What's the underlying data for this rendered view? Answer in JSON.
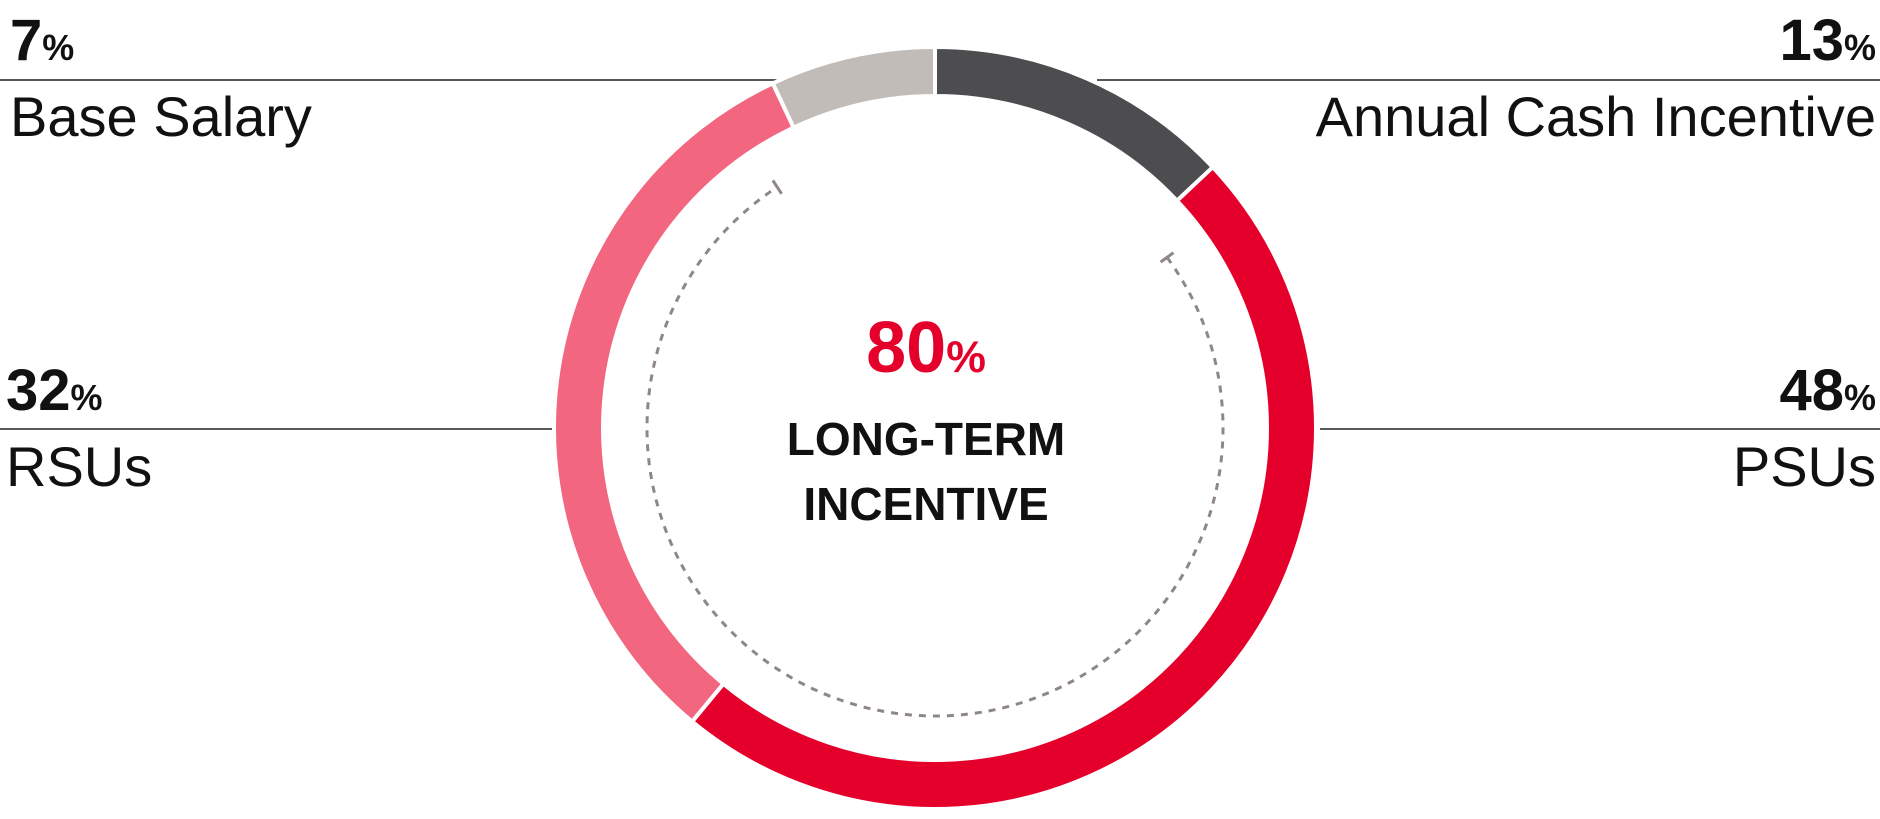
{
  "chart_data": {
    "type": "pie",
    "donut": true,
    "categories": [
      "Annual Cash Incentive",
      "PSUs",
      "RSUs",
      "Base Salary"
    ],
    "values": [
      13,
      48,
      32,
      7
    ],
    "value_labels": [
      "13%",
      "48%",
      "32%",
      "7%"
    ],
    "colors": [
      "#4d4d4f",
      "#e4002b",
      "#f26680",
      "#c1bcb8"
    ],
    "center_value_label": "80%",
    "center_text": [
      "LONG-TERM",
      "INCENTIVE"
    ]
  }
}
